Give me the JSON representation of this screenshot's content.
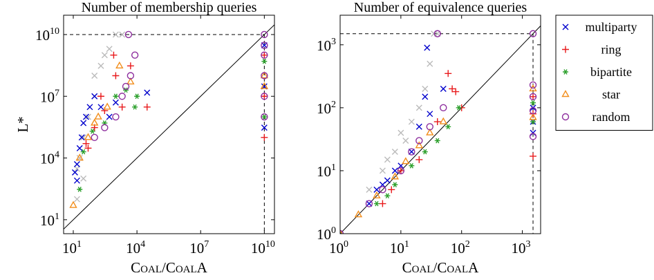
{
  "chart_data": [
    {
      "type": "scatter",
      "title": "Number of membership queries",
      "xlabel": "Coal/CoalA",
      "ylabel": "L*",
      "log_x": true,
      "log_y": true,
      "xlim": [
        3.5,
        30000000000.0
      ],
      "ylim": [
        2.1,
        87000000000.0
      ],
      "xticks": [
        {
          "value": 10,
          "label": "10^1"
        },
        {
          "value": 10000,
          "label": "10^4"
        },
        {
          "value": 10000000,
          "label": "10^7"
        },
        {
          "value": 10000000000,
          "label": "10^10"
        }
      ],
      "yticks": [
        {
          "value": 10,
          "label": "10^1"
        },
        {
          "value": 10000,
          "label": "10^4"
        },
        {
          "value": 10000000,
          "label": "10^7"
        },
        {
          "value": 10000000000,
          "label": "10^10"
        }
      ],
      "ref_line": 10000000000,
      "legend": "outside right",
      "series": [
        {
          "color": "#bbbbbb",
          "marker": "x",
          "x": [
            15,
            20,
            30,
            50,
            100,
            200,
            300,
            500,
            1000,
            2000,
            15,
            30,
            100
          ],
          "values": [
            3000,
            10000,
            100000,
            1000000,
            100000000,
            300000000,
            1000000000,
            2000000000,
            10000000000,
            10000000000,
            100,
            1000,
            10000000
          ]
        },
        {
          "name": "multiparty",
          "color": "#0000cc",
          "marker": "x",
          "x": [
            12,
            15,
            20,
            25,
            30,
            40,
            60,
            100,
            200,
            500,
            1000,
            30000,
            15,
            10000000000,
            10000000000,
            10000000000
          ],
          "values": [
            2000,
            5000,
            30000,
            100000,
            500000,
            1000000,
            3000000,
            10000000,
            3000000,
            1000000,
            5000000,
            15000000,
            800,
            300000,
            30000000,
            3000000000
          ]
        },
        {
          "name": "ring",
          "color": "#e8191b",
          "marker": "+",
          "x": [
            50,
            100,
            300,
            1000,
            2000,
            5000,
            30000,
            40,
            200,
            10000000000,
            10000000000,
            10000000000,
            800
          ],
          "values": [
            30000,
            300000,
            2000000,
            100000000,
            3000000,
            300000000,
            3000000,
            50000,
            10000000,
            100000,
            10000000,
            1000000000,
            1000000000
          ]
        },
        {
          "name": "bipartite",
          "color": "#2ca02c",
          "marker": "*",
          "x": [
            20,
            30,
            80,
            300,
            1000,
            3000,
            8000,
            10000,
            10000000000,
            10000000000
          ],
          "values": [
            300,
            20000,
            200000,
            500000,
            10000000,
            20000000,
            3000000,
            10000000,
            1000000,
            500000000
          ]
        },
        {
          "name": "star",
          "color": "#f28e1c",
          "marker": "triangle",
          "x": [
            10,
            20,
            50,
            150,
            400,
            1500,
            5000,
            100,
            10000000000,
            10000000000
          ],
          "values": [
            50,
            10000,
            100000,
            1000000,
            3000000,
            300000000,
            50000000,
            500000,
            30000000,
            100000000
          ]
        },
        {
          "name": "random",
          "color": "#8e2e9e",
          "marker": "circle",
          "x": [
            100,
            300,
            1000,
            2000,
            3000,
            5000,
            8000,
            4000,
            10000000000,
            10000000000,
            10000000000,
            10000000000,
            10000000000,
            10000000000
          ],
          "values": [
            100000,
            300000,
            1000000,
            10000000,
            30000000,
            100000000,
            1000000000,
            10000000000,
            10000000000,
            3000000000,
            1000000000,
            100000000,
            10000000,
            1000000
          ]
        }
      ]
    },
    {
      "type": "scatter",
      "title": "Number of equivalence queries",
      "xlabel": "Coal/CoalA",
      "log_x": true,
      "log_y": true,
      "xlim": [
        1,
        2000
      ],
      "ylim": [
        1,
        2950
      ],
      "xticks": [
        {
          "value": 1,
          "label": "10^0"
        },
        {
          "value": 10,
          "label": "10^1"
        },
        {
          "value": 100,
          "label": "10^2"
        },
        {
          "value": 1000,
          "label": "10^3"
        }
      ],
      "yticks": [
        {
          "value": 1,
          "label": "10^0"
        },
        {
          "value": 10,
          "label": "10^1"
        },
        {
          "value": 100,
          "label": "10^2"
        },
        {
          "value": 1000,
          "label": "10^3"
        }
      ],
      "ref_line": 1500,
      "series": [
        {
          "color": "#bbbbbb",
          "marker": "x",
          "x": [
            3,
            5,
            8,
            10,
            15,
            20,
            25,
            30,
            40,
            35,
            6,
            12
          ],
          "values": [
            5,
            10,
            20,
            40,
            60,
            100,
            200,
            500,
            1500,
            1500,
            15,
            30
          ]
        },
        {
          "color": "#0000cc",
          "marker": "x",
          "x": [
            3,
            4,
            5,
            6,
            8,
            10,
            15,
            20,
            25,
            30,
            27,
            50,
            1500,
            1500,
            1500
          ],
          "values": [
            3,
            5,
            6,
            7,
            10,
            12,
            20,
            50,
            150,
            80,
            900,
            200,
            100,
            60,
            40
          ]
        },
        {
          "color": "#e8191b",
          "marker": "+",
          "x": [
            5,
            7,
            10,
            20,
            40,
            60,
            70,
            80,
            100,
            1500,
            1500,
            1500
          ],
          "values": [
            3,
            5,
            10,
            15,
            60,
            350,
            200,
            180,
            100,
            17,
            80,
            150
          ]
        },
        {
          "color": "#2ca02c",
          "marker": "*",
          "x": [
            4,
            6,
            8,
            15,
            25,
            40,
            60,
            90,
            1500,
            1500
          ],
          "values": [
            3,
            4,
            6,
            12,
            20,
            30,
            50,
            100,
            60,
            120
          ]
        },
        {
          "color": "#f28e1c",
          "marker": "triangle",
          "x": [
            1,
            2,
            4,
            8,
            12,
            20,
            30,
            50,
            1500,
            1500
          ],
          "values": [
            1,
            2,
            4,
            8,
            14,
            25,
            40,
            60,
            70,
            200
          ]
        },
        {
          "color": "#8e2e9e",
          "marker": "circle",
          "x": [
            1,
            3,
            5,
            10,
            15,
            20,
            30,
            50,
            40,
            1500,
            1500,
            1500,
            1500,
            1500
          ],
          "values": [
            1,
            3,
            5,
            10,
            20,
            30,
            50,
            100,
            1500,
            1500,
            35,
            90,
            150,
            230
          ]
        }
      ]
    }
  ]
}
